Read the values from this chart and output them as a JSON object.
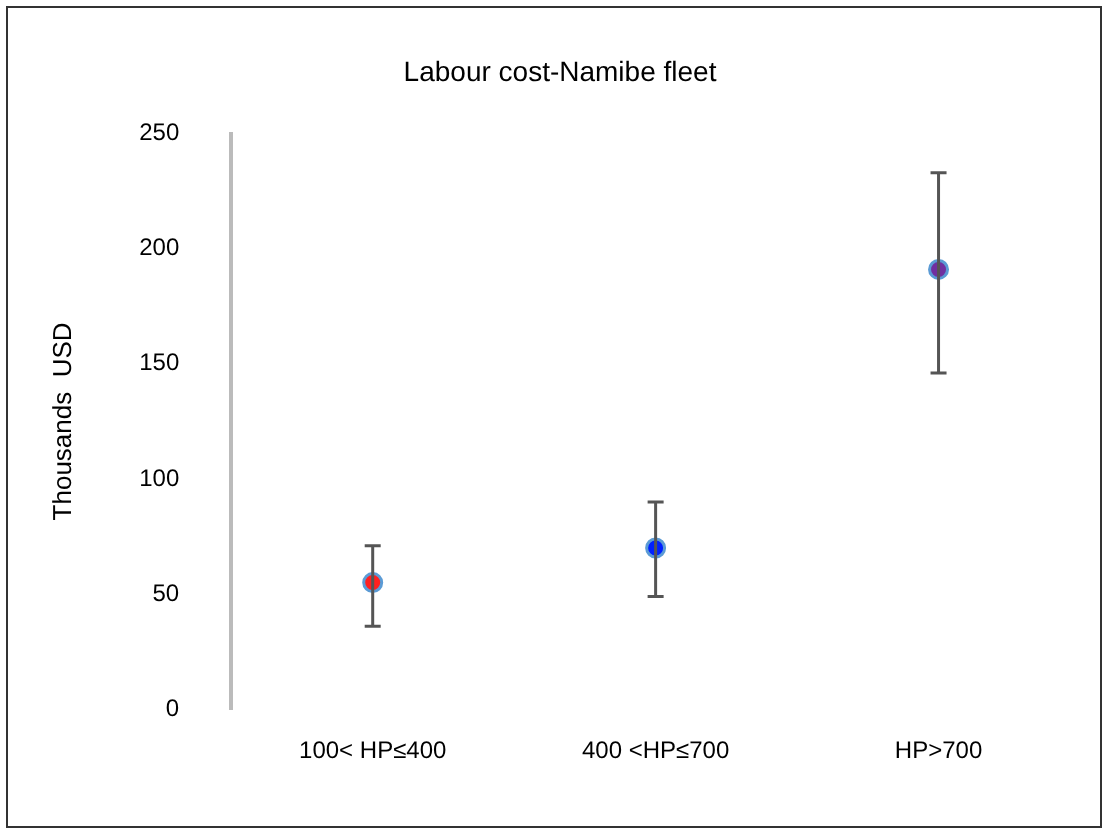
{
  "chart_data": {
    "type": "scatter",
    "title": "Labour cost-Namibe fleet",
    "ylabel": "Thousands  USD",
    "categories": [
      "100< HP≤400",
      "400 <HP≤700",
      "HP>700"
    ],
    "values": [
      55,
      70,
      191
    ],
    "colors": [
      "#ff2020",
      "#0020ff",
      "#7030a0"
    ],
    "errors": [
      [
        36,
        71
      ],
      [
        49,
        90
      ],
      [
        146,
        233
      ]
    ],
    "ylim": [
      0,
      250
    ],
    "yticks": [
      0,
      50,
      100,
      150,
      200,
      250
    ],
    "grid": false,
    "legend": false,
    "marker": "circle"
  }
}
